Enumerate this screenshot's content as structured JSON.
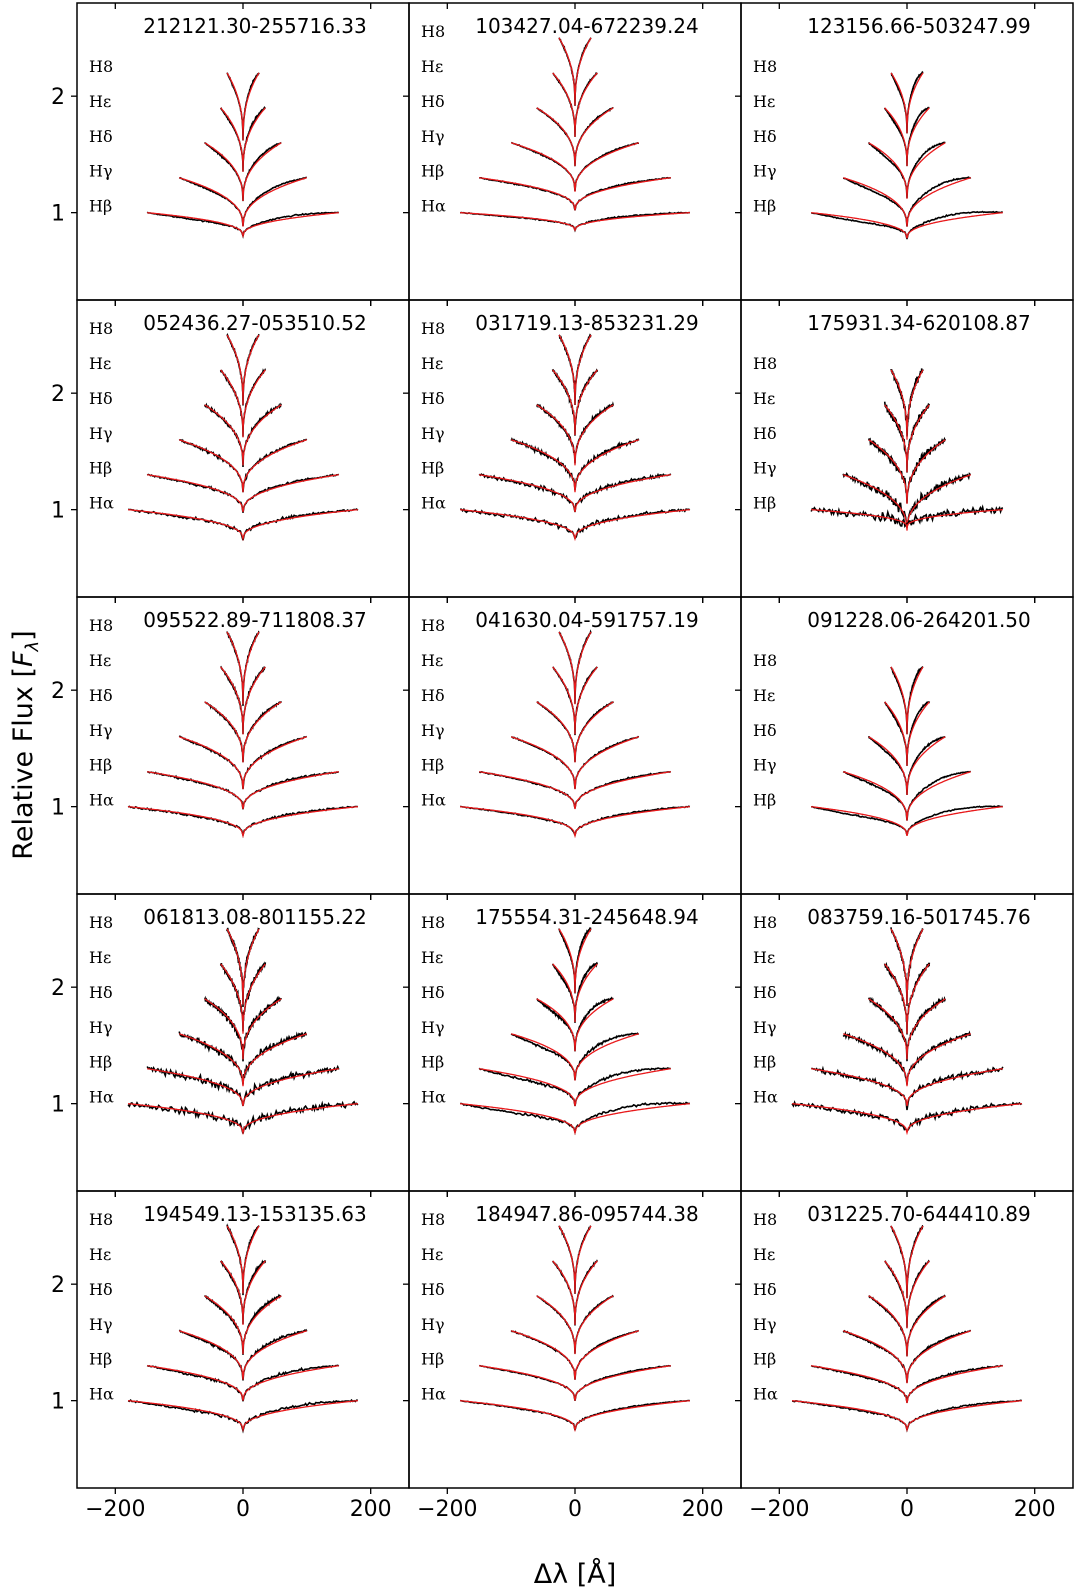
{
  "chart_data": {
    "type": "line",
    "description_units": {
      "x": "Angstrom offset from line center",
      "y": "relative flux (offset per line)"
    },
    "xlabel": "Δλ [Å]",
    "ylabel": "Relative Flux [F_λ]",
    "xlim": [
      -260,
      260
    ],
    "ylim": [
      0.25,
      2.8
    ],
    "xticks": [
      -200,
      0,
      200
    ],
    "xtick_labels": [
      "−200",
      "0",
      "200"
    ],
    "yticks": [
      1,
      2
    ],
    "ytick_labels": [
      "1",
      "2"
    ],
    "line_offsets": [
      0,
      0.3,
      0.6,
      0.9,
      1.2,
      1.5
    ],
    "line_halfwidths": [
      180,
      150,
      100,
      60,
      35,
      25
    ],
    "series_colors": {
      "observed": "#000000",
      "model": "#e8191b"
    },
    "panels": [
      {
        "title": "212121.30-255716.33",
        "labels": [
          "H8",
          "Hε",
          "Hδ",
          "Hγ",
          "Hβ"
        ],
        "depths": [
          0.58,
          0.55,
          0.5,
          0.42,
          0.2
        ],
        "noise": 0.006,
        "mismatch": 0.02
      },
      {
        "title": "103427.04-672239.24",
        "labels": [
          "H8",
          "Hε",
          "Hδ",
          "Hγ",
          "Hβ",
          "Hα"
        ],
        "depths": [
          0.58,
          0.55,
          0.5,
          0.42,
          0.28,
          0.15
        ],
        "noise": 0.006,
        "mismatch": 0.01
      },
      {
        "title": "123156.66-503247.99",
        "labels": [
          "H8",
          "Hε",
          "Hδ",
          "Hγ",
          "Hβ"
        ],
        "depths": [
          0.52,
          0.5,
          0.48,
          0.42,
          0.22
        ],
        "noise": 0.006,
        "mismatch": 0.04
      },
      {
        "title": "052436.27-053510.52",
        "labels": [
          "H8",
          "Hε",
          "Hδ",
          "Hγ",
          "Hβ",
          "Hα"
        ],
        "depths": [
          0.6,
          0.58,
          0.52,
          0.45,
          0.32,
          0.25
        ],
        "noise": 0.012,
        "mismatch": 0.01
      },
      {
        "title": "031719.13-853231.29",
        "labels": [
          "H8",
          "Hε",
          "Hδ",
          "Hγ",
          "Hβ",
          "Hα"
        ],
        "depths": [
          0.6,
          0.56,
          0.52,
          0.45,
          0.32,
          0.25
        ],
        "noise": 0.018,
        "mismatch": 0.01
      },
      {
        "title": "175931.34-620108.87",
        "labels": [
          "H8",
          "Hε",
          "Hδ",
          "Hγ",
          "Hβ"
        ],
        "depths": [
          0.6,
          0.58,
          0.55,
          0.48,
          0.15
        ],
        "noise": 0.035,
        "mismatch": 0.01
      },
      {
        "title": "095522.89-711808.37",
        "labels": [
          "H8",
          "Hε",
          "Hδ",
          "Hγ",
          "Hβ",
          "Hα"
        ],
        "depths": [
          0.62,
          0.58,
          0.52,
          0.45,
          0.32,
          0.25
        ],
        "noise": 0.01,
        "mismatch": 0.01
      },
      {
        "title": "041630.04-591757.19",
        "labels": [
          "H8",
          "Hε",
          "Hδ",
          "Hγ",
          "Hβ",
          "Hα"
        ],
        "depths": [
          0.62,
          0.58,
          0.52,
          0.45,
          0.32,
          0.25
        ],
        "noise": 0.007,
        "mismatch": 0.01
      },
      {
        "title": "091228.06-264201.50",
        "labels": [
          "H8",
          "Hε",
          "Hδ",
          "Hγ",
          "Hβ"
        ],
        "depths": [
          0.58,
          0.55,
          0.5,
          0.42,
          0.25
        ],
        "noise": 0.006,
        "mismatch": 0.035
      },
      {
        "title": "061813.08-801155.22",
        "labels": [
          "H8",
          "Hε",
          "Hδ",
          "Hγ",
          "Hβ",
          "Hα"
        ],
        "depths": [
          0.65,
          0.6,
          0.52,
          0.45,
          0.32,
          0.25
        ],
        "noise": 0.03,
        "mismatch": 0.01
      },
      {
        "title": "175554.31-245648.94",
        "labels": [
          "H8",
          "Hε",
          "Hδ",
          "Hγ",
          "Hβ",
          "Hα"
        ],
        "depths": [
          0.55,
          0.5,
          0.45,
          0.4,
          0.32,
          0.25
        ],
        "noise": 0.01,
        "mismatch": 0.04
      },
      {
        "title": "083759.16-501745.76",
        "labels": [
          "H8",
          "Hε",
          "Hδ",
          "Hγ",
          "Hβ",
          "Hα"
        ],
        "depths": [
          0.65,
          0.6,
          0.52,
          0.45,
          0.32,
          0.25
        ],
        "noise": 0.025,
        "mismatch": 0.01
      },
      {
        "title": "194549.13-153135.63",
        "labels": [
          "H8",
          "Hε",
          "Hδ",
          "Hγ",
          "Hβ",
          "Hα"
        ],
        "depths": [
          0.58,
          0.55,
          0.5,
          0.42,
          0.3,
          0.25
        ],
        "noise": 0.012,
        "mismatch": 0.02
      },
      {
        "title": "184947.86-095744.38",
        "labels": [
          "H8",
          "Hε",
          "Hδ",
          "Hγ",
          "Hβ",
          "Hα"
        ],
        "depths": [
          0.58,
          0.55,
          0.5,
          0.42,
          0.3,
          0.25
        ],
        "noise": 0.006,
        "mismatch": 0.01
      },
      {
        "title": "031225.70-644410.89",
        "labels": [
          "H8",
          "Hε",
          "Hδ",
          "Hγ",
          "Hβ",
          "Hα"
        ],
        "depths": [
          0.62,
          0.58,
          0.52,
          0.45,
          0.32,
          0.25
        ],
        "noise": 0.008,
        "mismatch": 0.015
      }
    ]
  }
}
